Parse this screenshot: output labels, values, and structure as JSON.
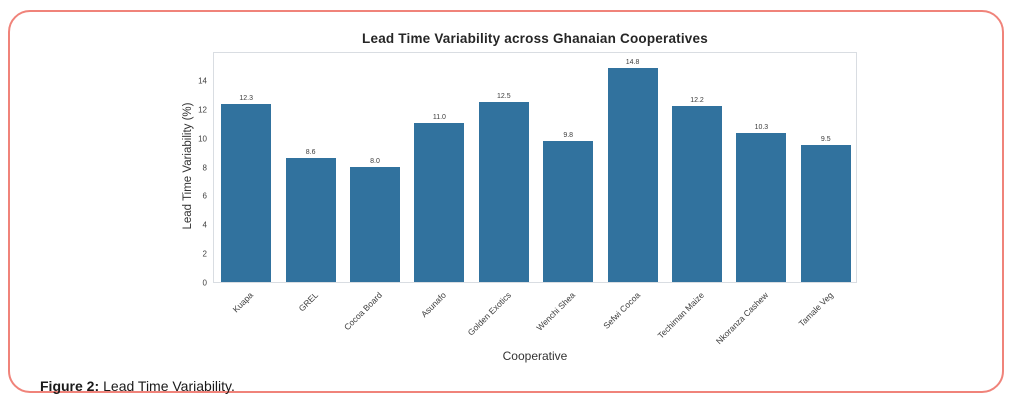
{
  "page": {
    "background": "#ffffff",
    "card_border_color": "#f0837a"
  },
  "caption": {
    "label": "Figure 2:",
    "text": "Lead Time Variability."
  },
  "chart_data": {
    "type": "bar",
    "title": "Lead Time Variability across Ghanaian Cooperatives",
    "xlabel": "Cooperative",
    "ylabel": "Lead Time Variability (%)",
    "categories": [
      "Kuapa",
      "GREL",
      "Cocoa Board",
      "Asunafo",
      "Golden Exotics",
      "Wenchi Shea",
      "Sefwi Cocoa",
      "Techiman Maize",
      "Nkoranza Cashew",
      "Tamale Veg"
    ],
    "values": [
      12.3,
      8.6,
      8.0,
      11.0,
      12.5,
      9.8,
      14.8,
      12.2,
      10.3,
      9.5
    ],
    "value_labels": [
      "12.3",
      "8.6",
      "8.0",
      "11.0",
      "12.5",
      "9.8",
      "14.8",
      "12.2",
      "10.3",
      "9.5"
    ],
    "yticks": [
      0,
      2,
      4,
      6,
      8,
      10,
      12,
      14
    ],
    "ylim": [
      0,
      16
    ],
    "bar_color": "#31729e",
    "spine_color": "#d9dde2",
    "grid": false,
    "legend": "none"
  }
}
